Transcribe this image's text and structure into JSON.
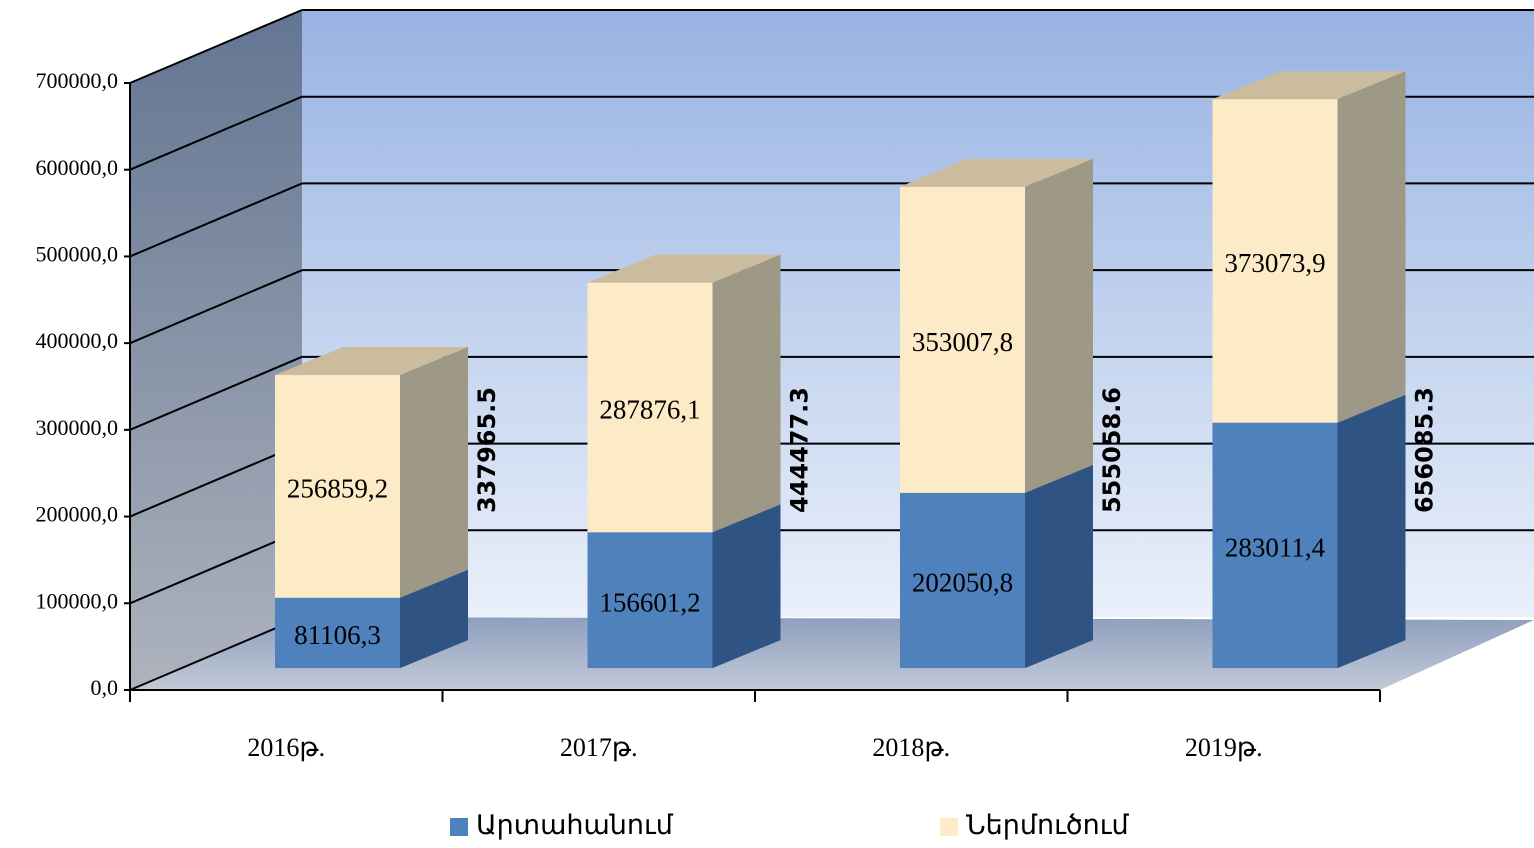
{
  "chart_data": {
    "type": "bar3d_stacked",
    "categories": [
      "2016թ.",
      "2017թ.",
      "2018թ.",
      "2019թ."
    ],
    "series": [
      {
        "name": "Արտահանում",
        "color": "#4f81bd",
        "values": [
          81106.3,
          156601.2,
          202050.8,
          283011.4
        ],
        "value_labels": [
          "81106,3",
          "156601,2",
          "202050,8",
          "283011,4"
        ]
      },
      {
        "name": "Ներմուծում",
        "color": "#fdebc8",
        "values": [
          256859.2,
          287876.1,
          353007.8,
          373073.9
        ],
        "value_labels": [
          "256859,2",
          "287876,1",
          "353007,8",
          "373073,9"
        ]
      }
    ],
    "totals": [
      337965.5,
      444477.3,
      555058.6,
      656085.3
    ],
    "ylim": [
      0,
      700000
    ],
    "yticks": [
      {
        "value": 0,
        "label": "0,0"
      },
      {
        "value": 100000,
        "label": "100000,0"
      },
      {
        "value": 200000,
        "label": "200000,0"
      },
      {
        "value": 300000,
        "label": "300000,0"
      },
      {
        "value": 400000,
        "label": "400000,0"
      },
      {
        "value": 500000,
        "label": "500000,0"
      },
      {
        "value": 600000,
        "label": "600000,0"
      },
      {
        "value": 700000,
        "label": "700000,0"
      }
    ],
    "grid": true,
    "legend": "bottom"
  }
}
